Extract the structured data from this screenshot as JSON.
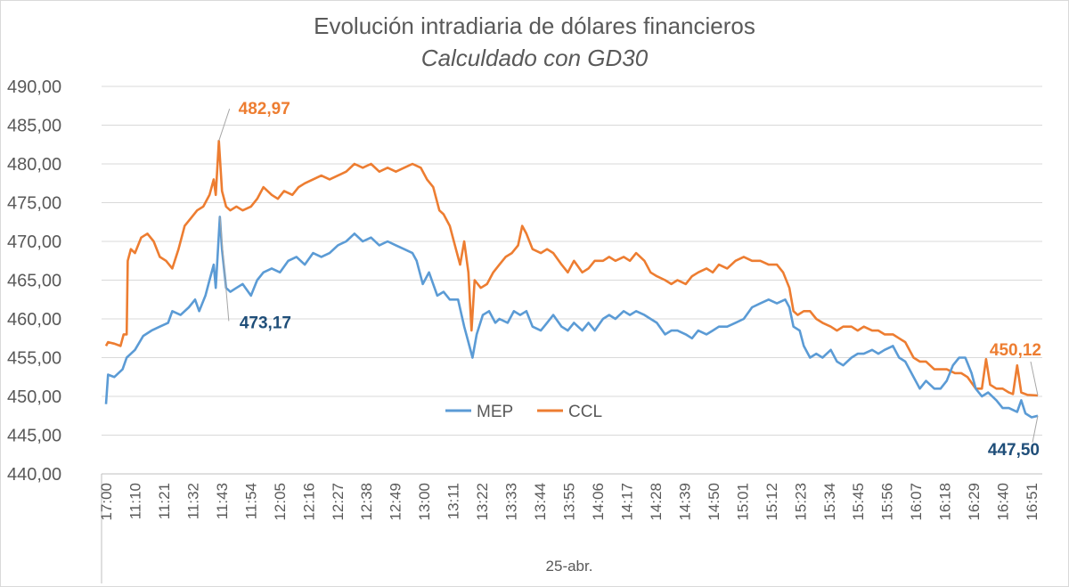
{
  "chart_data": {
    "type": "line",
    "title": "Evolución intradiaria de dólares financieros",
    "subtitle": "Calculdado con GD30",
    "xlabel": "25-abr.",
    "ylabel": "",
    "ylim": [
      440,
      490
    ],
    "yticks": [
      "440,00",
      "445,00",
      "450,00",
      "455,00",
      "460,00",
      "465,00",
      "470,00",
      "475,00",
      "480,00",
      "485,00",
      "490,00"
    ],
    "x_tick_labels": [
      "17:00",
      "11:10",
      "11:21",
      "11:32",
      "11:43",
      "11:54",
      "12:05",
      "12:16",
      "12:27",
      "12:38",
      "12:49",
      "13:00",
      "13:11",
      "13:22",
      "13:33",
      "13:44",
      "13:55",
      "14:06",
      "14:17",
      "14:28",
      "14:39",
      "14:50",
      "15:01",
      "15:12",
      "15:23",
      "15:34",
      "15:45",
      "15:56",
      "16:07",
      "16:18",
      "16:29",
      "16:40",
      "16:51"
    ],
    "legend": [
      "MEP",
      "CCL"
    ],
    "legend_position": "inside-bottom-center",
    "series": [
      {
        "name": "MEP",
        "color": "#5b9bd5",
        "values": [
          [
            0,
            449.0
          ],
          [
            0.1,
            452.8
          ],
          [
            0.4,
            452.5
          ],
          [
            0.8,
            453.5
          ],
          [
            1.0,
            455.0
          ],
          [
            1.4,
            456.0
          ],
          [
            1.8,
            457.8
          ],
          [
            2.2,
            458.5
          ],
          [
            2.6,
            459.0
          ],
          [
            3.0,
            459.5
          ],
          [
            3.2,
            461.0
          ],
          [
            3.6,
            460.5
          ],
          [
            4.0,
            461.5
          ],
          [
            4.3,
            462.5
          ],
          [
            4.5,
            461.0
          ],
          [
            4.8,
            463.0
          ],
          [
            5.0,
            465.0
          ],
          [
            5.2,
            467.0
          ],
          [
            5.3,
            464.0
          ],
          [
            5.5,
            473.17
          ],
          [
            5.6,
            469.0
          ],
          [
            5.8,
            464.0
          ],
          [
            6.0,
            463.5
          ],
          [
            6.3,
            464.0
          ],
          [
            6.6,
            464.5
          ],
          [
            7.0,
            463.0
          ],
          [
            7.3,
            465.0
          ],
          [
            7.6,
            466.0
          ],
          [
            8.0,
            466.5
          ],
          [
            8.4,
            466.0
          ],
          [
            8.8,
            467.5
          ],
          [
            9.2,
            468.0
          ],
          [
            9.6,
            467.0
          ],
          [
            10.0,
            468.5
          ],
          [
            10.4,
            468.0
          ],
          [
            10.8,
            468.5
          ],
          [
            11.2,
            469.5
          ],
          [
            11.6,
            470.0
          ],
          [
            12.0,
            471.0
          ],
          [
            12.4,
            470.0
          ],
          [
            12.8,
            470.5
          ],
          [
            13.2,
            469.5
          ],
          [
            13.6,
            470.0
          ],
          [
            14.0,
            469.5
          ],
          [
            14.4,
            469.0
          ],
          [
            14.8,
            468.5
          ],
          [
            15.0,
            467.5
          ],
          [
            15.3,
            464.5
          ],
          [
            15.6,
            466.0
          ],
          [
            16.0,
            463.0
          ],
          [
            16.3,
            463.5
          ],
          [
            16.6,
            462.5
          ],
          [
            17.0,
            462.5
          ],
          [
            17.3,
            459.0
          ],
          [
            17.5,
            457.0
          ],
          [
            17.7,
            455.0
          ],
          [
            17.9,
            458.0
          ],
          [
            18.2,
            460.5
          ],
          [
            18.5,
            461.0
          ],
          [
            18.8,
            459.5
          ],
          [
            19.0,
            460.0
          ],
          [
            19.4,
            459.5
          ],
          [
            19.7,
            461.0
          ],
          [
            20.0,
            460.5
          ],
          [
            20.3,
            461.0
          ],
          [
            20.6,
            459.0
          ],
          [
            21.0,
            458.5
          ],
          [
            21.3,
            459.5
          ],
          [
            21.6,
            460.5
          ],
          [
            22.0,
            459.0
          ],
          [
            22.3,
            458.5
          ],
          [
            22.6,
            459.5
          ],
          [
            23.0,
            458.5
          ],
          [
            23.3,
            459.5
          ],
          [
            23.6,
            458.5
          ],
          [
            24.0,
            460.0
          ],
          [
            24.3,
            460.5
          ],
          [
            24.6,
            460.0
          ],
          [
            25.0,
            461.0
          ],
          [
            25.3,
            460.5
          ],
          [
            25.6,
            461.0
          ],
          [
            26.0,
            460.5
          ],
          [
            26.3,
            460.0
          ],
          [
            26.6,
            459.5
          ],
          [
            27.0,
            458.0
          ],
          [
            27.3,
            458.5
          ],
          [
            27.6,
            458.5
          ],
          [
            28.0,
            458.0
          ],
          [
            28.3,
            457.5
          ],
          [
            28.6,
            458.5
          ],
          [
            29.0,
            458.0
          ],
          [
            29.3,
            458.5
          ],
          [
            29.6,
            459.0
          ],
          [
            30.0,
            459.0
          ],
          [
            30.4,
            459.5
          ],
          [
            30.8,
            460.0
          ],
          [
            31.2,
            461.5
          ],
          [
            31.6,
            462.0
          ],
          [
            32.0,
            462.5
          ],
          [
            32.4,
            462.0
          ],
          [
            32.8,
            462.5
          ],
          [
            33.0,
            461.5
          ],
          [
            33.2,
            459.0
          ],
          [
            33.5,
            458.5
          ],
          [
            33.7,
            456.5
          ],
          [
            34.0,
            455.0
          ],
          [
            34.3,
            455.5
          ],
          [
            34.6,
            455.0
          ],
          [
            35.0,
            456.0
          ],
          [
            35.3,
            454.5
          ],
          [
            35.6,
            454.0
          ],
          [
            36.0,
            455.0
          ],
          [
            36.3,
            455.5
          ],
          [
            36.6,
            455.5
          ],
          [
            37.0,
            456.0
          ],
          [
            37.3,
            455.5
          ],
          [
            37.6,
            456.0
          ],
          [
            38.0,
            456.5
          ],
          [
            38.3,
            455.0
          ],
          [
            38.6,
            454.5
          ],
          [
            39.0,
            452.5
          ],
          [
            39.3,
            451.0
          ],
          [
            39.6,
            452.0
          ],
          [
            40.0,
            451.0
          ],
          [
            40.3,
            451.0
          ],
          [
            40.6,
            452.0
          ],
          [
            40.9,
            454.0
          ],
          [
            41.2,
            455.0
          ],
          [
            41.5,
            455.0
          ],
          [
            41.8,
            453.0
          ],
          [
            42.0,
            451.0
          ],
          [
            42.3,
            450.0
          ],
          [
            42.6,
            450.5
          ],
          [
            43.0,
            449.5
          ],
          [
            43.3,
            448.5
          ],
          [
            43.6,
            448.5
          ],
          [
            44.0,
            448.0
          ],
          [
            44.2,
            449.5
          ],
          [
            44.4,
            447.8
          ],
          [
            44.7,
            447.3
          ],
          [
            45.0,
            447.5
          ]
        ]
      },
      {
        "name": "CCL",
        "color": "#ed7d31",
        "values": [
          [
            0,
            456.5
          ],
          [
            0.1,
            457.0
          ],
          [
            0.4,
            456.8
          ],
          [
            0.7,
            456.5
          ],
          [
            0.85,
            458.0
          ],
          [
            1.0,
            458.0
          ],
          [
            1.05,
            467.5
          ],
          [
            1.2,
            469.0
          ],
          [
            1.4,
            468.5
          ],
          [
            1.7,
            470.5
          ],
          [
            2.0,
            471.0
          ],
          [
            2.3,
            470.0
          ],
          [
            2.6,
            468.0
          ],
          [
            2.9,
            467.5
          ],
          [
            3.2,
            466.5
          ],
          [
            3.5,
            469.0
          ],
          [
            3.8,
            472.0
          ],
          [
            4.1,
            473.0
          ],
          [
            4.4,
            474.0
          ],
          [
            4.7,
            474.5
          ],
          [
            5.0,
            476.0
          ],
          [
            5.2,
            478.0
          ],
          [
            5.3,
            476.0
          ],
          [
            5.45,
            482.97
          ],
          [
            5.6,
            476.5
          ],
          [
            5.8,
            474.5
          ],
          [
            6.0,
            474.0
          ],
          [
            6.3,
            474.5
          ],
          [
            6.6,
            474.0
          ],
          [
            7.0,
            474.5
          ],
          [
            7.3,
            475.5
          ],
          [
            7.6,
            477.0
          ],
          [
            8.0,
            476.0
          ],
          [
            8.3,
            475.5
          ],
          [
            8.6,
            476.5
          ],
          [
            9.0,
            476.0
          ],
          [
            9.3,
            477.0
          ],
          [
            9.6,
            477.5
          ],
          [
            10.0,
            478.0
          ],
          [
            10.4,
            478.5
          ],
          [
            10.8,
            478.0
          ],
          [
            11.2,
            478.5
          ],
          [
            11.6,
            479.0
          ],
          [
            12.0,
            480.0
          ],
          [
            12.4,
            479.5
          ],
          [
            12.8,
            480.0
          ],
          [
            13.2,
            479.0
          ],
          [
            13.6,
            479.5
          ],
          [
            14.0,
            479.0
          ],
          [
            14.4,
            479.5
          ],
          [
            14.8,
            480.0
          ],
          [
            15.2,
            479.5
          ],
          [
            15.5,
            478.0
          ],
          [
            15.8,
            477.0
          ],
          [
            16.1,
            474.0
          ],
          [
            16.3,
            473.5
          ],
          [
            16.6,
            472.0
          ],
          [
            16.9,
            469.0
          ],
          [
            17.1,
            467.0
          ],
          [
            17.3,
            470.0
          ],
          [
            17.5,
            466.0
          ],
          [
            17.65,
            458.5
          ],
          [
            17.8,
            465.0
          ],
          [
            18.1,
            464.0
          ],
          [
            18.4,
            464.5
          ],
          [
            18.7,
            466.0
          ],
          [
            19.0,
            467.0
          ],
          [
            19.3,
            468.0
          ],
          [
            19.6,
            468.5
          ],
          [
            19.9,
            469.5
          ],
          [
            20.1,
            472.0
          ],
          [
            20.3,
            471.0
          ],
          [
            20.6,
            469.0
          ],
          [
            21.0,
            468.5
          ],
          [
            21.3,
            469.0
          ],
          [
            21.6,
            468.5
          ],
          [
            22.0,
            467.0
          ],
          [
            22.3,
            466.0
          ],
          [
            22.6,
            467.5
          ],
          [
            23.0,
            466.0
          ],
          [
            23.3,
            466.5
          ],
          [
            23.6,
            467.5
          ],
          [
            24.0,
            467.5
          ],
          [
            24.3,
            468.0
          ],
          [
            24.6,
            467.5
          ],
          [
            25.0,
            468.0
          ],
          [
            25.3,
            467.5
          ],
          [
            25.6,
            468.5
          ],
          [
            26.0,
            467.5
          ],
          [
            26.3,
            466.0
          ],
          [
            26.6,
            465.5
          ],
          [
            27.0,
            465.0
          ],
          [
            27.3,
            464.5
          ],
          [
            27.6,
            465.0
          ],
          [
            28.0,
            464.5
          ],
          [
            28.3,
            465.5
          ],
          [
            28.6,
            466.0
          ],
          [
            29.0,
            466.5
          ],
          [
            29.3,
            466.0
          ],
          [
            29.6,
            467.0
          ],
          [
            30.0,
            466.5
          ],
          [
            30.4,
            467.5
          ],
          [
            30.8,
            468.0
          ],
          [
            31.2,
            467.5
          ],
          [
            31.6,
            467.5
          ],
          [
            32.0,
            467.0
          ],
          [
            32.4,
            467.0
          ],
          [
            32.7,
            466.0
          ],
          [
            33.0,
            464.0
          ],
          [
            33.2,
            461.0
          ],
          [
            33.4,
            460.5
          ],
          [
            33.7,
            461.0
          ],
          [
            34.0,
            461.0
          ],
          [
            34.3,
            460.0
          ],
          [
            34.6,
            459.5
          ],
          [
            35.0,
            459.0
          ],
          [
            35.3,
            458.5
          ],
          [
            35.6,
            459.0
          ],
          [
            36.0,
            459.0
          ],
          [
            36.3,
            458.5
          ],
          [
            36.6,
            459.0
          ],
          [
            37.0,
            458.5
          ],
          [
            37.3,
            458.5
          ],
          [
            37.6,
            458.0
          ],
          [
            38.0,
            458.0
          ],
          [
            38.3,
            457.5
          ],
          [
            38.6,
            457.0
          ],
          [
            39.0,
            455.0
          ],
          [
            39.3,
            454.5
          ],
          [
            39.6,
            454.5
          ],
          [
            40.0,
            453.5
          ],
          [
            40.3,
            453.5
          ],
          [
            40.6,
            453.5
          ],
          [
            41.0,
            453.0
          ],
          [
            41.3,
            453.0
          ],
          [
            41.6,
            452.5
          ],
          [
            42.0,
            451.0
          ],
          [
            42.3,
            451.0
          ],
          [
            42.5,
            454.8
          ],
          [
            42.7,
            451.5
          ],
          [
            43.0,
            451.0
          ],
          [
            43.3,
            451.0
          ],
          [
            43.6,
            450.5
          ],
          [
            43.8,
            450.3
          ],
          [
            44.0,
            454.0
          ],
          [
            44.2,
            450.5
          ],
          [
            44.5,
            450.2
          ],
          [
            45.0,
            450.12
          ]
        ]
      }
    ],
    "annotations": [
      {
        "series": "CCL",
        "label": "482,97",
        "x": 5.45,
        "y": 482.97
      },
      {
        "series": "MEP",
        "label": "473,17",
        "x": 5.5,
        "y": 473.17
      },
      {
        "series": "CCL",
        "label": "450,12",
        "x": 45.0,
        "y": 450.12
      },
      {
        "series": "MEP",
        "label": "447,50",
        "x": 45.0,
        "y": 447.5
      }
    ],
    "x_range": [
      0,
      45
    ]
  }
}
